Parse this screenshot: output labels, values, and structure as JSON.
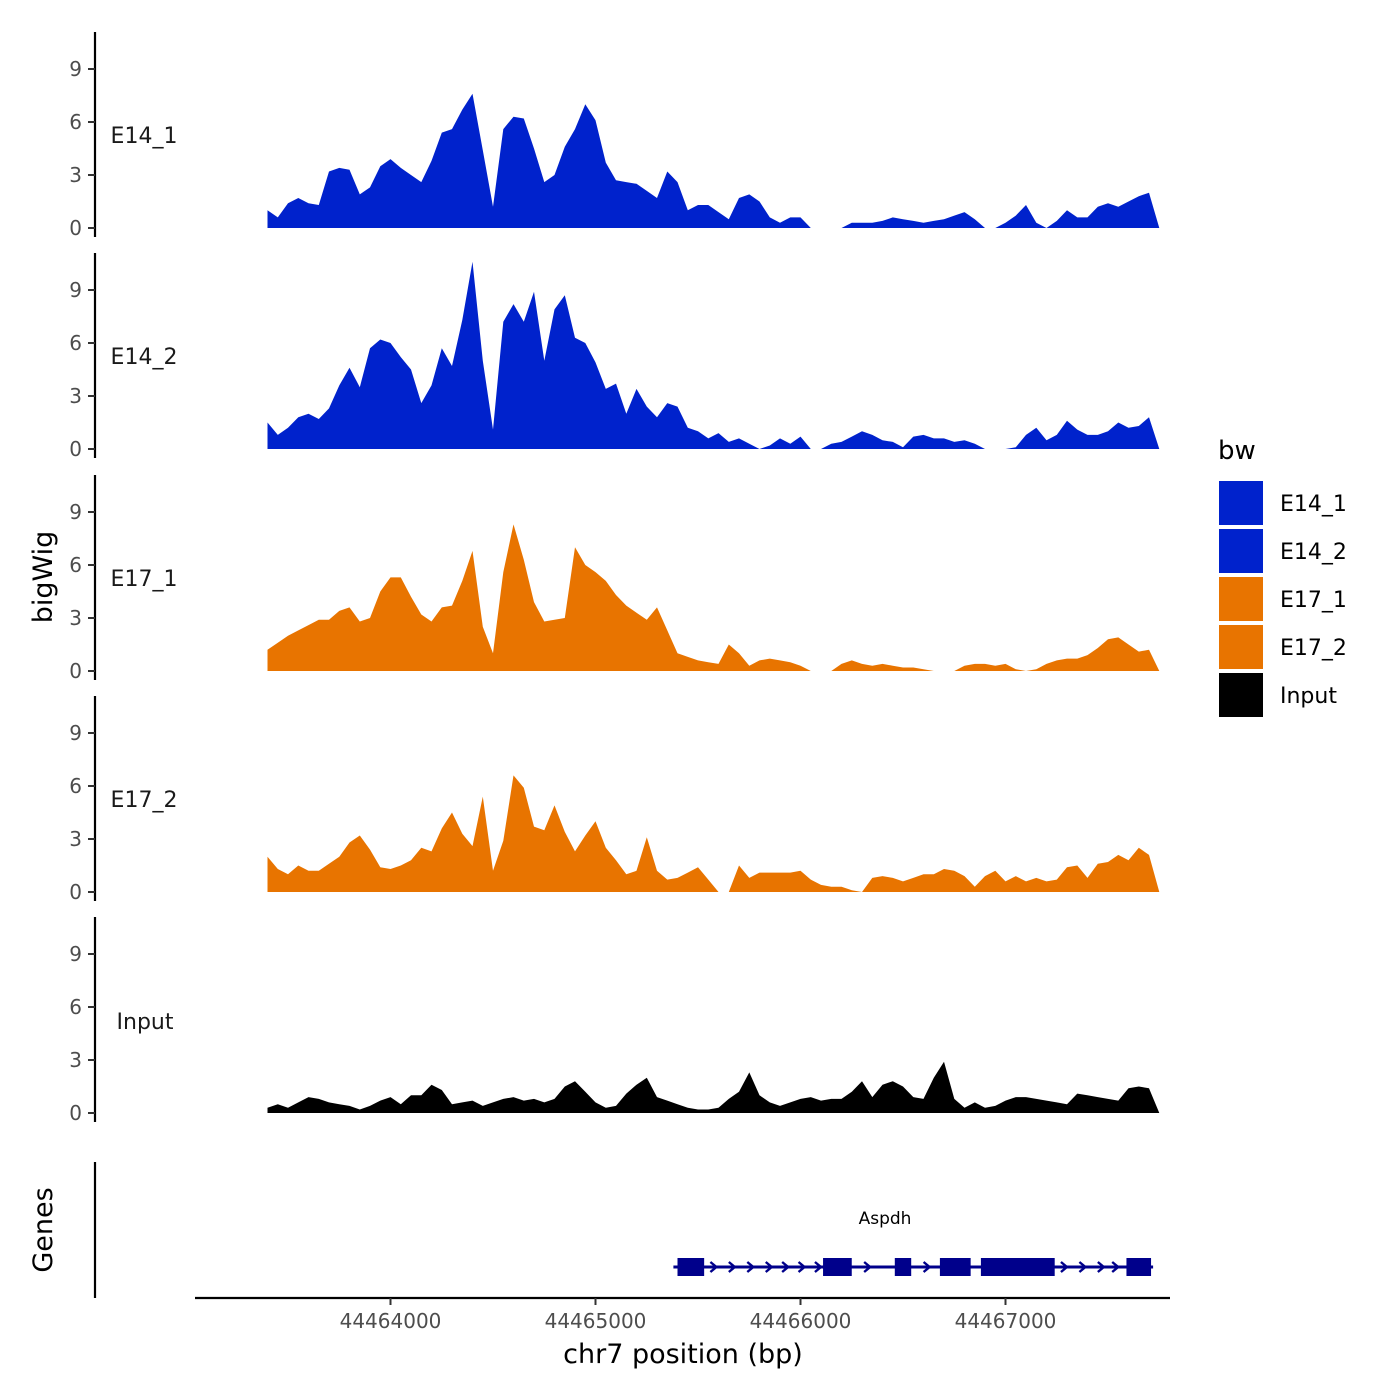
{
  "chart_data": {
    "type": "area",
    "ylabel": "bigWig",
    "xlabel": "chr7 position (bp)",
    "genes_label": "Genes",
    "ylim": [
      0,
      11
    ],
    "yticks": [
      0,
      3,
      6,
      9
    ],
    "ytick_labels": [
      "0",
      "3",
      "6",
      "9"
    ],
    "xlim": [
      44463200,
      44467950
    ],
    "xticks": [
      44464000,
      44465000,
      44466000,
      44467000
    ],
    "xtick_labels": [
      "44464000",
      "44465000",
      "44466000",
      "44467000"
    ],
    "legend": {
      "title": "bw",
      "placement": "right",
      "entries": [
        {
          "label": "E14_1",
          "color": "#0022cc"
        },
        {
          "label": "E14_2",
          "color": "#0022cc"
        },
        {
          "label": "E17_1",
          "color": "#e87400"
        },
        {
          "label": "E17_2",
          "color": "#e87400"
        },
        {
          "label": "Input",
          "color": "#000000"
        }
      ]
    },
    "series": [
      {
        "name": "E14_1",
        "label": "E14_1",
        "color": "#0022cc",
        "x": [
          44463400,
          44463450,
          44463500,
          44463550,
          44463600,
          44463650,
          44463700,
          44463750,
          44463800,
          44463850,
          44463900,
          44463950,
          44464000,
          44464050,
          44464100,
          44464150,
          44464200,
          44464250,
          44464300,
          44464350,
          44464400,
          44464450,
          44464500,
          44464550,
          44464600,
          44464650,
          44464700,
          44464750,
          44464800,
          44464850,
          44464900,
          44464950,
          44465000,
          44465050,
          44465100,
          44465150,
          44465200,
          44465250,
          44465300,
          44465350,
          44465400,
          44465450,
          44465500,
          44465550,
          44465600,
          44465650,
          44465700,
          44465750,
          44465800,
          44465850,
          44465900,
          44465950,
          44466000,
          44466050,
          44466100,
          44466150,
          44466200,
          44466250,
          44466300,
          44466350,
          44466400,
          44466450,
          44466500,
          44466550,
          44466600,
          44466650,
          44466700,
          44466750,
          44466800,
          44466850,
          44466900,
          44466950,
          44467000,
          44467050,
          44467100,
          44467150,
          44467200,
          44467250,
          44467300,
          44467350,
          44467400,
          44467450,
          44467500,
          44467550,
          44467600,
          44467650,
          44467700,
          44467750
        ],
        "values": [
          1.0,
          0.6,
          1.4,
          1.7,
          1.4,
          1.3,
          3.2,
          3.4,
          3.3,
          1.9,
          2.3,
          3.5,
          3.9,
          3.4,
          3.0,
          2.6,
          3.8,
          5.4,
          5.6,
          6.7,
          7.6,
          4.4,
          1.2,
          5.6,
          6.3,
          6.2,
          4.5,
          2.6,
          3.0,
          4.6,
          5.6,
          7.0,
          6.1,
          3.7,
          2.7,
          2.6,
          2.5,
          2.1,
          1.7,
          3.2,
          2.6,
          1.0,
          1.3,
          1.3,
          0.9,
          0.5,
          1.7,
          1.9,
          1.5,
          0.6,
          0.3,
          0.6,
          0.6,
          0.0,
          0.0,
          0.0,
          0.0,
          0.3,
          0.3,
          0.3,
          0.4,
          0.6,
          0.5,
          0.4,
          0.3,
          0.4,
          0.5,
          0.7,
          0.9,
          0.5,
          0.0,
          0.0,
          0.3,
          0.7,
          1.3,
          0.3,
          0.0,
          0.4,
          1.0,
          0.6,
          0.6,
          1.2,
          1.4,
          1.2,
          1.5,
          1.8,
          2.0,
          0.0
        ]
      },
      {
        "name": "E14_2",
        "label": "E14_2",
        "color": "#0022cc",
        "x": [
          44463400,
          44463450,
          44463500,
          44463550,
          44463600,
          44463650,
          44463700,
          44463750,
          44463800,
          44463850,
          44463900,
          44463950,
          44464000,
          44464050,
          44464100,
          44464150,
          44464200,
          44464250,
          44464300,
          44464350,
          44464400,
          44464450,
          44464500,
          44464550,
          44464600,
          44464650,
          44464700,
          44464750,
          44464800,
          44464850,
          44464900,
          44464950,
          44465000,
          44465050,
          44465100,
          44465150,
          44465200,
          44465250,
          44465300,
          44465350,
          44465400,
          44465450,
          44465500,
          44465550,
          44465600,
          44465650,
          44465700,
          44465750,
          44465800,
          44465850,
          44465900,
          44465950,
          44466000,
          44466050,
          44466100,
          44466150,
          44466200,
          44466250,
          44466300,
          44466350,
          44466400,
          44466450,
          44466500,
          44466550,
          44466600,
          44466650,
          44466700,
          44466750,
          44466800,
          44466850,
          44466900,
          44466950,
          44467000,
          44467050,
          44467100,
          44467150,
          44467200,
          44467250,
          44467300,
          44467350,
          44467400,
          44467450,
          44467500,
          44467550,
          44467600,
          44467650,
          44467700,
          44467750
        ],
        "values": [
          1.5,
          0.8,
          1.2,
          1.8,
          2.0,
          1.7,
          2.3,
          3.6,
          4.6,
          3.5,
          5.7,
          6.2,
          6.0,
          5.2,
          4.5,
          2.6,
          3.6,
          5.7,
          4.7,
          7.3,
          10.6,
          5.0,
          1.1,
          7.2,
          8.2,
          7.2,
          8.9,
          5.0,
          7.9,
          8.7,
          6.3,
          6.0,
          4.9,
          3.4,
          3.7,
          2.0,
          3.4,
          2.4,
          1.8,
          2.6,
          2.4,
          1.2,
          1.0,
          0.6,
          0.9,
          0.4,
          0.6,
          0.3,
          0.0,
          0.2,
          0.6,
          0.3,
          0.7,
          0.0,
          0.0,
          0.3,
          0.4,
          0.7,
          1.0,
          0.8,
          0.5,
          0.4,
          0.1,
          0.7,
          0.8,
          0.6,
          0.6,
          0.4,
          0.5,
          0.3,
          0.0,
          0.0,
          0.0,
          0.1,
          0.8,
          1.2,
          0.5,
          0.8,
          1.6,
          1.1,
          0.8,
          0.8,
          1.0,
          1.5,
          1.2,
          1.3,
          1.8,
          0.0
        ]
      },
      {
        "name": "E17_1",
        "label": "E17_1",
        "color": "#e87400",
        "x": [
          44463400,
          44463450,
          44463500,
          44463550,
          44463600,
          44463650,
          44463700,
          44463750,
          44463800,
          44463850,
          44463900,
          44463950,
          44464000,
          44464050,
          44464100,
          44464150,
          44464200,
          44464250,
          44464300,
          44464350,
          44464400,
          44464450,
          44464500,
          44464550,
          44464600,
          44464650,
          44464700,
          44464750,
          44464800,
          44464850,
          44464900,
          44464950,
          44465000,
          44465050,
          44465100,
          44465150,
          44465200,
          44465250,
          44465300,
          44465350,
          44465400,
          44465450,
          44465500,
          44465550,
          44465600,
          44465650,
          44465700,
          44465750,
          44465800,
          44465850,
          44465900,
          44465950,
          44466000,
          44466050,
          44466100,
          44466150,
          44466200,
          44466250,
          44466300,
          44466350,
          44466400,
          44466450,
          44466500,
          44466550,
          44466600,
          44466650,
          44466700,
          44466750,
          44466800,
          44466850,
          44466900,
          44466950,
          44467000,
          44467050,
          44467100,
          44467150,
          44467200,
          44467250,
          44467300,
          44467350,
          44467400,
          44467450,
          44467500,
          44467550,
          44467600,
          44467650,
          44467700,
          44467750
        ],
        "values": [
          1.2,
          1.6,
          2.0,
          2.3,
          2.6,
          2.9,
          2.9,
          3.4,
          3.6,
          2.8,
          3.0,
          4.5,
          5.3,
          5.3,
          4.2,
          3.2,
          2.8,
          3.6,
          3.7,
          5.1,
          6.8,
          2.5,
          1.0,
          5.6,
          8.3,
          6.3,
          3.9,
          2.8,
          2.9,
          3.0,
          7.0,
          6.0,
          5.6,
          5.1,
          4.3,
          3.7,
          3.3,
          2.9,
          3.6,
          2.3,
          1.0,
          0.8,
          0.6,
          0.5,
          0.4,
          1.5,
          1.0,
          0.3,
          0.6,
          0.7,
          0.6,
          0.5,
          0.3,
          0.0,
          0.0,
          0.0,
          0.4,
          0.6,
          0.4,
          0.3,
          0.4,
          0.3,
          0.2,
          0.2,
          0.1,
          0.0,
          0.0,
          0.0,
          0.3,
          0.4,
          0.4,
          0.3,
          0.4,
          0.1,
          0.0,
          0.1,
          0.4,
          0.6,
          0.7,
          0.7,
          0.9,
          1.3,
          1.8,
          1.9,
          1.5,
          1.1,
          1.2,
          0.0
        ]
      },
      {
        "name": "E17_2",
        "label": "E17_2",
        "color": "#e87400",
        "x": [
          44463400,
          44463450,
          44463500,
          44463550,
          44463600,
          44463650,
          44463700,
          44463750,
          44463800,
          44463850,
          44463900,
          44463950,
          44464000,
          44464050,
          44464100,
          44464150,
          44464200,
          44464250,
          44464300,
          44464350,
          44464400,
          44464450,
          44464500,
          44464550,
          44464600,
          44464650,
          44464700,
          44464750,
          44464800,
          44464850,
          44464900,
          44464950,
          44465000,
          44465050,
          44465100,
          44465150,
          44465200,
          44465250,
          44465300,
          44465350,
          44465400,
          44465450,
          44465500,
          44465550,
          44465600,
          44465650,
          44465700,
          44465750,
          44465800,
          44465850,
          44465900,
          44465950,
          44466000,
          44466050,
          44466100,
          44466150,
          44466200,
          44466250,
          44466300,
          44466350,
          44466400,
          44466450,
          44466500,
          44466550,
          44466600,
          44466650,
          44466700,
          44466750,
          44466800,
          44466850,
          44466900,
          44466950,
          44467000,
          44467050,
          44467100,
          44467150,
          44467200,
          44467250,
          44467300,
          44467350,
          44467400,
          44467450,
          44467500,
          44467550,
          44467600,
          44467650,
          44467700,
          44467750
        ],
        "values": [
          2.0,
          1.3,
          1.0,
          1.5,
          1.2,
          1.2,
          1.6,
          2.0,
          2.8,
          3.2,
          2.4,
          1.4,
          1.3,
          1.5,
          1.8,
          2.5,
          2.3,
          3.6,
          4.5,
          3.3,
          2.6,
          5.4,
          1.2,
          2.9,
          6.6,
          5.9,
          3.7,
          3.5,
          4.9,
          3.4,
          2.3,
          3.2,
          4.0,
          2.5,
          1.8,
          1.0,
          1.2,
          3.1,
          1.2,
          0.7,
          0.8,
          1.1,
          1.4,
          0.7,
          0.0,
          0.0,
          1.5,
          0.8,
          1.1,
          1.1,
          1.1,
          1.1,
          1.2,
          0.7,
          0.4,
          0.3,
          0.3,
          0.1,
          0.0,
          0.8,
          0.9,
          0.8,
          0.6,
          0.8,
          1.0,
          1.0,
          1.3,
          1.2,
          0.9,
          0.3,
          0.9,
          1.2,
          0.6,
          0.9,
          0.6,
          0.8,
          0.6,
          0.7,
          1.4,
          1.5,
          0.8,
          1.6,
          1.7,
          2.1,
          1.8,
          2.5,
          2.1,
          0.0
        ]
      },
      {
        "name": "Input",
        "label": "Input",
        "color": "#000000",
        "x": [
          44463400,
          44463450,
          44463500,
          44463550,
          44463600,
          44463650,
          44463700,
          44463750,
          44463800,
          44463850,
          44463900,
          44463950,
          44464000,
          44464050,
          44464100,
          44464150,
          44464200,
          44464250,
          44464300,
          44464350,
          44464400,
          44464450,
          44464500,
          44464550,
          44464600,
          44464650,
          44464700,
          44464750,
          44464800,
          44464850,
          44464900,
          44464950,
          44465000,
          44465050,
          44465100,
          44465150,
          44465200,
          44465250,
          44465300,
          44465350,
          44465400,
          44465450,
          44465500,
          44465550,
          44465600,
          44465650,
          44465700,
          44465750,
          44465800,
          44465850,
          44465900,
          44465950,
          44466000,
          44466050,
          44466100,
          44466150,
          44466200,
          44466250,
          44466300,
          44466350,
          44466400,
          44466450,
          44466500,
          44466550,
          44466600,
          44466650,
          44466700,
          44466750,
          44466800,
          44466850,
          44466900,
          44466950,
          44467000,
          44467050,
          44467100,
          44467150,
          44467200,
          44467250,
          44467300,
          44467350,
          44467400,
          44467450,
          44467500,
          44467550,
          44467600,
          44467650,
          44467700,
          44467750
        ],
        "values": [
          0.3,
          0.5,
          0.3,
          0.6,
          0.9,
          0.8,
          0.6,
          0.5,
          0.4,
          0.2,
          0.4,
          0.7,
          0.9,
          0.5,
          1.0,
          1.0,
          1.6,
          1.3,
          0.5,
          0.6,
          0.7,
          0.4,
          0.6,
          0.8,
          0.9,
          0.7,
          0.8,
          0.6,
          0.8,
          1.5,
          1.8,
          1.2,
          0.6,
          0.3,
          0.4,
          1.1,
          1.6,
          2.0,
          0.9,
          0.7,
          0.5,
          0.3,
          0.2,
          0.2,
          0.3,
          0.8,
          1.2,
          2.3,
          1.0,
          0.6,
          0.4,
          0.6,
          0.8,
          0.9,
          0.7,
          0.8,
          0.8,
          1.2,
          1.8,
          0.9,
          1.6,
          1.8,
          1.5,
          0.9,
          0.8,
          2.0,
          2.9,
          0.8,
          0.3,
          0.6,
          0.3,
          0.4,
          0.7,
          0.9,
          0.9,
          0.8,
          0.7,
          0.6,
          0.5,
          1.1,
          1.0,
          0.9,
          0.8,
          0.7,
          1.4,
          1.5,
          1.4,
          0.0
        ]
      }
    ],
    "gene": {
      "name": "Aspdh",
      "color": "#00008b",
      "strand": "+",
      "start": 44465380,
      "end": 44467720,
      "exons": [
        [
          44465400,
          44465530
        ],
        [
          44466110,
          44466250
        ],
        [
          44466460,
          44466540
        ],
        [
          44466680,
          44466830
        ],
        [
          44466880,
          44467090
        ],
        [
          44467080,
          44467240
        ],
        [
          44467590,
          44467710
        ]
      ],
      "arrow_positions": [
        44465580,
        44465670,
        44465760,
        44465850,
        44465930,
        44466010,
        44466090,
        44466330,
        44466620,
        44467290,
        44467380,
        44467470,
        44467540
      ]
    }
  }
}
